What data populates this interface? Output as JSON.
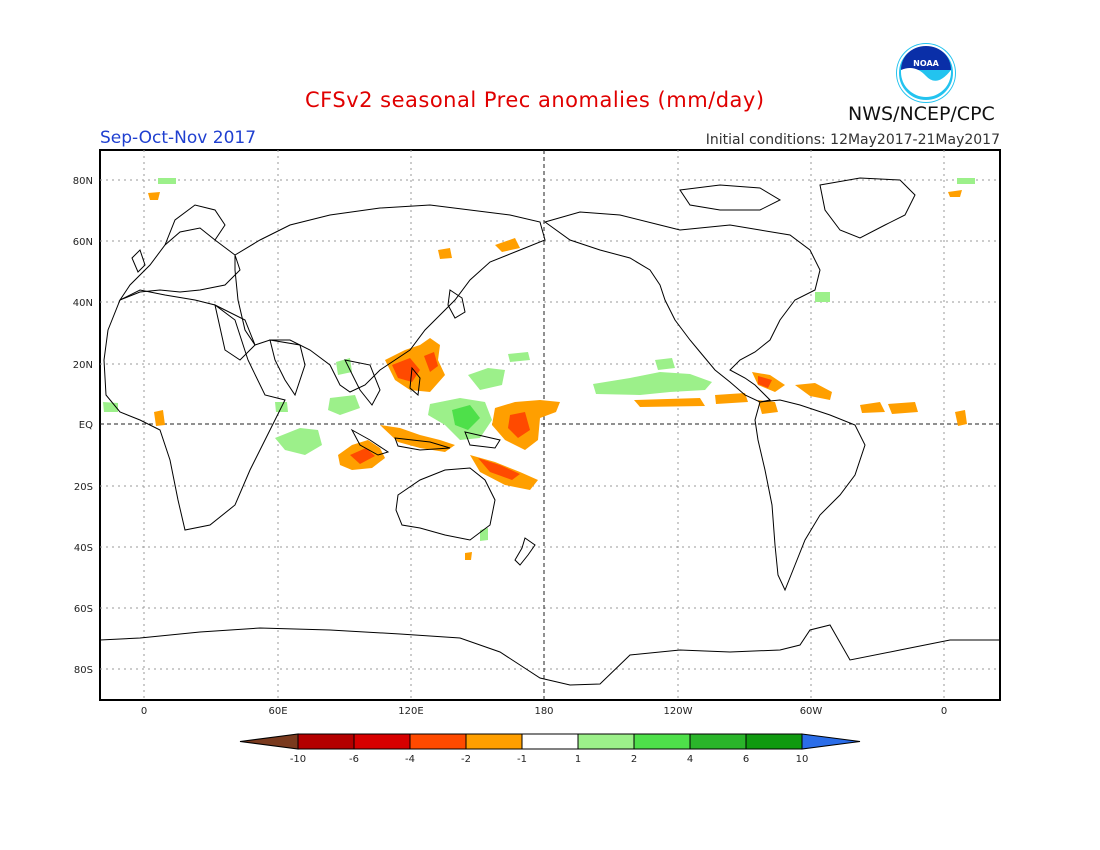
{
  "header": {
    "title": "CFSv2 seasonal Prec anomalies (mm/day)",
    "period": "Sep-Oct-Nov 2017",
    "initial_conditions": "Initial conditions: 12May2017-21May2017",
    "agency": "NWS/NCEP/CPC",
    "logo_text": "NOAA"
  },
  "map": {
    "lat_labels": [
      "80N",
      "60N",
      "40N",
      "20N",
      "EQ",
      "20S",
      "40S",
      "60S",
      "80S"
    ],
    "lon_labels": [
      "0",
      "60E",
      "120E",
      "180",
      "120W",
      "60W",
      "0"
    ]
  },
  "colorbar": {
    "labels": [
      "-10",
      "-6",
      "-4",
      "-2",
      "-1",
      "1",
      "2",
      "4",
      "6",
      "10"
    ],
    "colors": [
      "#7a3a1e",
      "#b40000",
      "#d70000",
      "#ff4a00",
      "#ff9f00",
      "#ffffff",
      "#9cf08a",
      "#4ee04a",
      "#2ab52a",
      "#109a10",
      "#2b6de8"
    ]
  }
}
